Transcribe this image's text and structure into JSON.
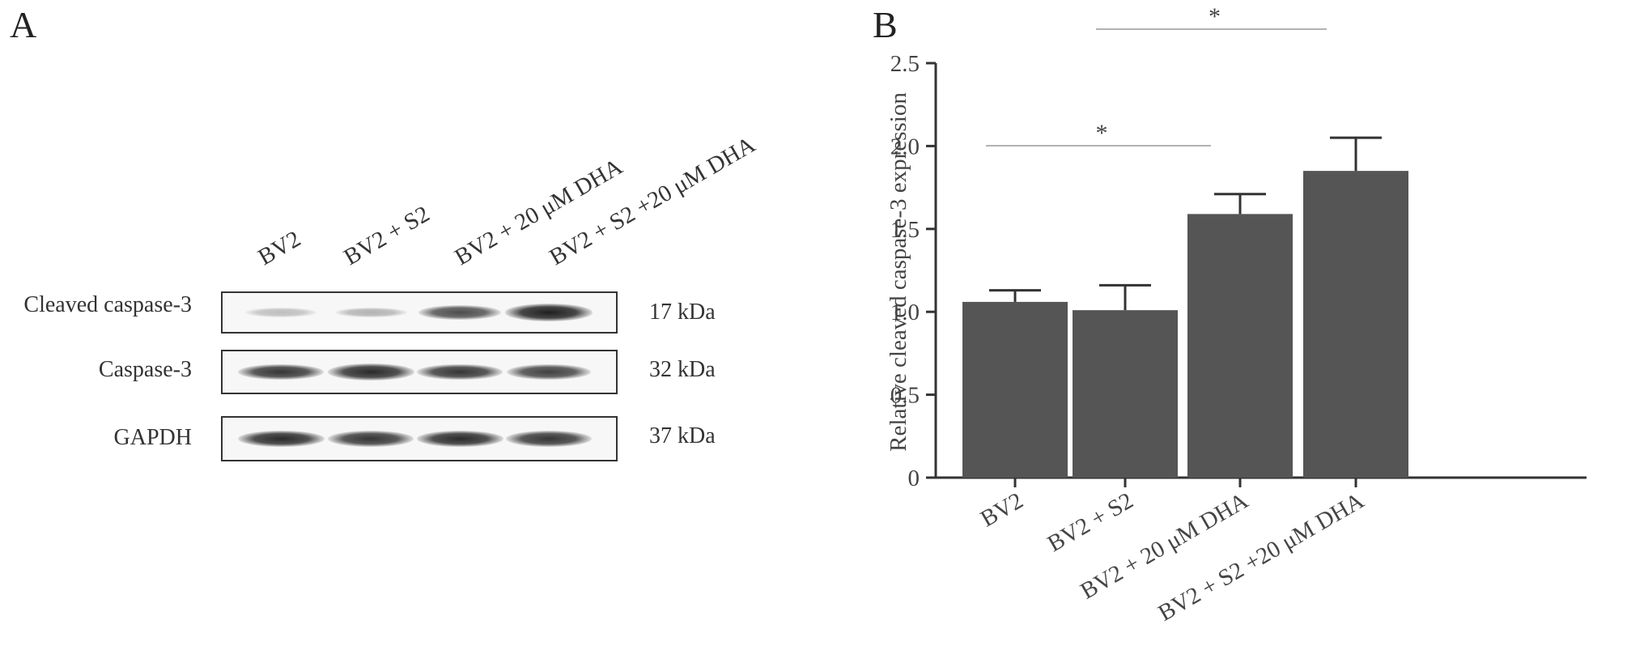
{
  "panel_a": {
    "label": "A",
    "lanes": [
      "BV2",
      "BV2 + S2",
      "BV2 + 20 μM DHA",
      "BV2 + S2 +20 μM DHA"
    ],
    "rows": [
      {
        "name": "Cleaved caspase-3",
        "kda": "17 kDa",
        "intensity": [
          0.25,
          0.3,
          0.75,
          0.95
        ]
      },
      {
        "name": "Caspase-3",
        "kda": "32 kDa",
        "intensity": [
          0.85,
          0.9,
          0.85,
          0.8
        ]
      },
      {
        "name": "GAPDH",
        "kda": "37 kDa",
        "intensity": [
          0.9,
          0.85,
          0.9,
          0.85
        ]
      }
    ]
  },
  "panel_b": {
    "label": "B"
  },
  "chart_data": {
    "type": "bar",
    "categories": [
      "BV2",
      "BV2 + S2",
      "BV2 + 20 μM DHA",
      "BV2 + S2 +20 μM DHA"
    ],
    "values": [
      1.06,
      1.01,
      1.59,
      1.85
    ],
    "error_upper": [
      1.13,
      1.16,
      1.71,
      2.05
    ],
    "ylabel": "Relative cleaved caspase-3 expression",
    "ylim": [
      0,
      2.5
    ],
    "yticks": [
      "0",
      "0.5",
      "1.0",
      "1.5",
      "2.0",
      "2.5"
    ],
    "bar_color": "#555555",
    "significance": [
      {
        "from": 0,
        "to": 2,
        "label": "*"
      },
      {
        "from": 1,
        "to": 3,
        "label": "*"
      }
    ]
  }
}
